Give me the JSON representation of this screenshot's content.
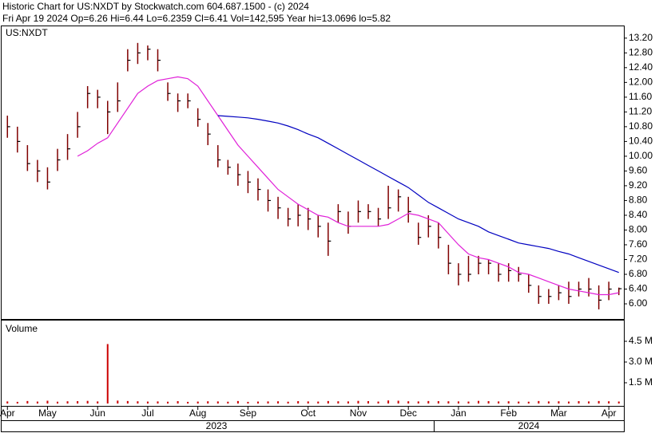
{
  "header": {
    "line1": "Historic Chart for US:NXDT by Stockwatch.com 604.687.1500 - (c) 2024",
    "line2": "Fri Apr 19 2024  Op=6.26  Hi=6.44  Lo=6.2359  Cl=6.41  Vol=142,595  Year hi=13.0696  lo=5.82"
  },
  "chart_data": {
    "type": "ohlc",
    "symbol": "US:NXDT",
    "bar_color": "#800000",
    "grid": false,
    "categories": [
      "Apr",
      null,
      null,
      null,
      "May",
      null,
      null,
      null,
      null,
      "Jun",
      null,
      null,
      null,
      null,
      "Jul",
      null,
      null,
      null,
      null,
      "Aug",
      null,
      null,
      null,
      null,
      "Sep",
      null,
      null,
      null,
      null,
      null,
      "Oct",
      null,
      null,
      null,
      null,
      "Nov",
      null,
      null,
      null,
      null,
      "Dec",
      null,
      null,
      null,
      null,
      "Jan",
      null,
      null,
      null,
      null,
      "Feb",
      null,
      null,
      null,
      null,
      "Mar",
      null,
      null,
      null,
      null,
      "Apr",
      null
    ],
    "years": [
      "2023",
      "2024"
    ],
    "high": [
      11.1,
      10.8,
      10.3,
      9.9,
      9.7,
      10.2,
      10.6,
      11.2,
      11.9,
      11.8,
      11.5,
      12.0,
      12.9,
      13.07,
      13.0,
      12.9,
      12.0,
      11.7,
      11.7,
      11.3,
      10.9,
      10.3,
      9.9,
      9.8,
      9.6,
      9.4,
      9.1,
      8.9,
      8.6,
      8.7,
      8.6,
      8.4,
      8.2,
      8.7,
      8.5,
      8.8,
      8.7,
      8.6,
      9.2,
      9.1,
      8.9,
      8.2,
      8.4,
      8.2,
      7.6,
      7.1,
      7.3,
      7.3,
      7.2,
      7.1,
      7.1,
      7.0,
      6.8,
      6.5,
      6.4,
      6.5,
      6.6,
      6.6,
      6.7,
      6.5,
      6.6,
      6.44
    ],
    "low": [
      10.5,
      10.1,
      9.6,
      9.3,
      9.1,
      9.6,
      9.9,
      10.5,
      11.3,
      11.3,
      10.6,
      11.2,
      12.3,
      12.5,
      12.6,
      12.3,
      11.5,
      11.2,
      11.3,
      10.8,
      10.3,
      9.7,
      9.5,
      9.2,
      9.0,
      8.8,
      8.5,
      8.3,
      8.1,
      8.1,
      8.0,
      7.8,
      7.3,
      8.2,
      7.9,
      8.2,
      8.3,
      8.1,
      8.3,
      8.5,
      8.2,
      7.6,
      7.8,
      7.5,
      6.8,
      6.5,
      6.6,
      6.8,
      6.8,
      6.6,
      6.6,
      6.6,
      6.3,
      6.0,
      6.0,
      6.1,
      6.0,
      6.2,
      6.2,
      5.85,
      6.1,
      6.2359
    ],
    "close": [
      10.8,
      10.4,
      9.8,
      9.6,
      9.3,
      9.9,
      10.2,
      10.8,
      11.7,
      11.6,
      11.2,
      11.5,
      12.6,
      12.8,
      12.9,
      12.6,
      11.7,
      11.5,
      11.5,
      11.0,
      10.6,
      9.9,
      9.7,
      9.5,
      9.3,
      9.1,
      8.8,
      8.6,
      8.3,
      8.4,
      8.3,
      8.1,
      7.7,
      8.5,
      8.1,
      8.5,
      8.5,
      8.3,
      8.6,
      8.9,
      8.5,
      7.8,
      8.1,
      7.8,
      7.1,
      6.8,
      6.8,
      7.1,
      7.1,
      6.8,
      6.9,
      6.8,
      6.5,
      6.2,
      6.2,
      6.3,
      6.2,
      6.4,
      6.4,
      6.1,
      6.4,
      6.41
    ],
    "series": [
      {
        "color": "#e020d8",
        "values": [
          null,
          null,
          null,
          null,
          null,
          null,
          null,
          10.0,
          10.15,
          10.35,
          10.5,
          10.9,
          11.3,
          11.7,
          11.9,
          12.05,
          12.1,
          12.15,
          12.1,
          11.9,
          11.5,
          11.1,
          10.7,
          10.3,
          10.0,
          9.7,
          9.4,
          9.1,
          8.9,
          8.7,
          8.55,
          8.4,
          8.35,
          8.2,
          8.1,
          8.1,
          8.1,
          8.1,
          8.15,
          8.3,
          8.45,
          8.4,
          8.3,
          8.2,
          7.9,
          7.6,
          7.35,
          7.25,
          7.2,
          7.1,
          7.0,
          6.85,
          6.8,
          6.7,
          6.6,
          6.5,
          6.4,
          6.35,
          6.3,
          6.25,
          6.25,
          6.3
        ]
      },
      {
        "color": "#0000c0",
        "values": [
          null,
          null,
          null,
          null,
          null,
          null,
          null,
          null,
          null,
          null,
          null,
          null,
          null,
          null,
          null,
          null,
          null,
          null,
          null,
          null,
          null,
          11.1,
          11.08,
          11.06,
          11.04,
          11.0,
          10.95,
          10.9,
          10.82,
          10.72,
          10.6,
          10.5,
          10.35,
          10.2,
          10.05,
          9.9,
          9.75,
          9.6,
          9.45,
          9.3,
          9.15,
          8.95,
          8.75,
          8.6,
          8.45,
          8.3,
          8.2,
          8.1,
          7.95,
          7.85,
          7.75,
          7.65,
          7.6,
          7.55,
          7.5,
          7.42,
          7.35,
          7.25,
          7.15,
          7.05,
          6.95,
          6.85
        ]
      }
    ],
    "ylim": [
      5.59,
      13.52
    ],
    "yticks": [
      {
        "value": 6.0,
        "label": "6.00"
      },
      {
        "value": 6.4,
        "label": "6.40"
      },
      {
        "value": 6.8,
        "label": "6.80"
      },
      {
        "value": 7.2,
        "label": "7.20"
      },
      {
        "value": 7.6,
        "label": "7.60"
      },
      {
        "value": 8.0,
        "label": "8.00"
      },
      {
        "value": 8.4,
        "label": "8.40"
      },
      {
        "value": 8.8,
        "label": "8.80"
      },
      {
        "value": 9.2,
        "label": "9.20"
      },
      {
        "value": 9.6,
        "label": "9.60"
      },
      {
        "value": 10.0,
        "label": "10.00"
      },
      {
        "value": 10.4,
        "label": "10.40"
      },
      {
        "value": 10.8,
        "label": "10.80"
      },
      {
        "value": 11.2,
        "label": "11.20"
      },
      {
        "value": 11.6,
        "label": "11.60"
      },
      {
        "value": 12.0,
        "label": "12.00"
      },
      {
        "value": 12.4,
        "label": "12.40"
      },
      {
        "value": 12.8,
        "label": "12.80"
      },
      {
        "value": 13.2,
        "label": "13.20"
      }
    ],
    "volume": {
      "title": "Volume",
      "color": "#cc0000",
      "values": [
        150000,
        120000,
        180000,
        140000,
        200000,
        130000,
        160000,
        170000,
        190000,
        150000,
        4300000,
        210000,
        180000,
        160000,
        140000,
        150000,
        130000,
        170000,
        120000,
        140000,
        160000,
        150000,
        130000,
        180000,
        120000,
        140000,
        150000,
        160000,
        130000,
        170000,
        150000,
        140000,
        180000,
        160000,
        150000,
        190000,
        170000,
        140000,
        220000,
        200000,
        160000,
        150000,
        180000,
        170000,
        160000,
        150000,
        140000,
        190000,
        170000,
        150000,
        160000,
        140000,
        130000,
        180000,
        150000,
        160000,
        140000,
        170000,
        150000,
        180000,
        160000,
        142595
      ],
      "ylim": [
        0,
        6000000
      ],
      "yticks": [
        {
          "value": 1500000,
          "label": "1.5 M"
        },
        {
          "value": 3000000,
          "label": "3.0 M"
        },
        {
          "value": 4500000,
          "label": "4.5 M"
        }
      ]
    }
  }
}
